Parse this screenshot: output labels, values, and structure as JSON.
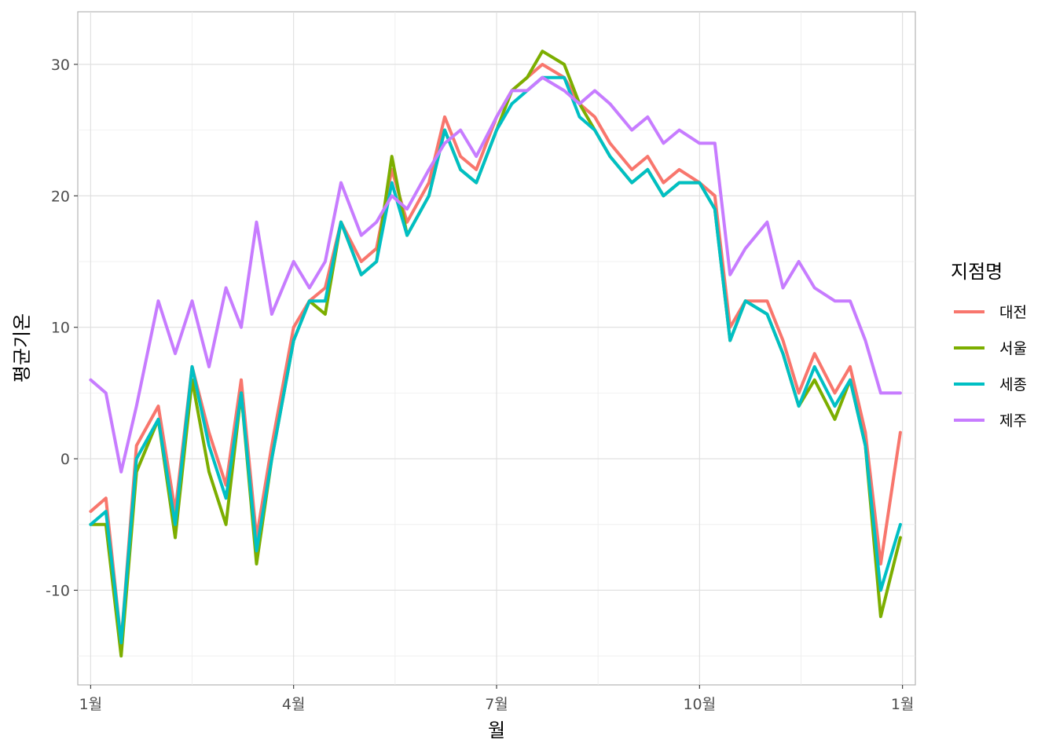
{
  "chart_data": {
    "type": "line",
    "xlabel": "월",
    "ylabel": "평균기온",
    "x_ticks": [
      {
        "month": 1,
        "label": "1월"
      },
      {
        "month": 4,
        "label": "4월"
      },
      {
        "month": 7,
        "label": "7월"
      },
      {
        "month": 10,
        "label": "10월"
      },
      {
        "month": 13,
        "label": "1월"
      }
    ],
    "y_ticks": [
      -10,
      0,
      10,
      20,
      30
    ],
    "xlim_month": [
      0.81,
      13.19
    ],
    "ylim": [
      -17.2,
      34.0
    ],
    "grid": true,
    "legend": {
      "title": "지점명",
      "position": "right"
    },
    "series": [
      {
        "name": "대전",
        "color": "#F8766D",
        "x": [
          "1월 1일",
          "1월 8일",
          "1월 15일",
          "1월 22일",
          "2월 1일",
          "2월 8일",
          "2월 15일",
          "2월 22일",
          "3월 1일",
          "3월 8일",
          "3월 15일",
          "3월 22일",
          "4월 1일",
          "4월 8일",
          "4월 15일",
          "4월 22일",
          "5월 1일",
          "5월 8일",
          "5월 15일",
          "5월 22일",
          "6월 1일",
          "6월 8일",
          "6월 15일",
          "6월 22일",
          "7월 1일",
          "7월 8일",
          "7월 15일",
          "7월 22일",
          "8월 1일",
          "8월 8일",
          "8월 15일",
          "8월 22일",
          "9월 1일",
          "9월 8일",
          "9월 15일",
          "9월 22일",
          "10월 1일",
          "10월 8일",
          "10월 15일",
          "10월 22일",
          "11월 1일",
          "11월 8일",
          "11월 15일",
          "11월 22일",
          "12월 1일",
          "12월 8일",
          "12월 15일",
          "12월 22일",
          "12월 31일"
        ],
        "values": [
          -4,
          -3,
          -14,
          1,
          4,
          -4,
          7,
          2,
          -2,
          6,
          -6,
          1,
          10,
          12,
          13,
          18,
          15,
          16,
          22,
          18,
          21,
          26,
          23,
          22,
          26,
          28,
          29,
          30,
          29,
          27,
          26,
          24,
          22,
          23,
          21,
          22,
          21,
          20,
          10,
          12,
          12,
          9,
          5,
          8,
          5,
          7,
          2,
          -8,
          2
        ]
      },
      {
        "name": "서울",
        "color": "#7CAE00",
        "x": [
          "1월 1일",
          "1월 8일",
          "1월 15일",
          "1월 22일",
          "2월 1일",
          "2월 8일",
          "2월 15일",
          "2월 22일",
          "3월 1일",
          "3월 8일",
          "3월 15일",
          "3월 22일",
          "4월 1일",
          "4월 8일",
          "4월 15일",
          "4월 22일",
          "5월 1일",
          "5월 8일",
          "5월 15일",
          "5월 22일",
          "6월 1일",
          "6월 8일",
          "6월 15일",
          "6월 22일",
          "7월 1일",
          "7월 8일",
          "7월 15일",
          "7월 22일",
          "8월 1일",
          "8월 8일",
          "8월 15일",
          "8월 22일",
          "9월 1일",
          "9월 8일",
          "9월 15일",
          "9월 22일",
          "10월 1일",
          "10월 8일",
          "10월 15일",
          "10월 22일",
          "11월 1일",
          "11월 8일",
          "11월 15일",
          "11월 22일",
          "12월 1일",
          "12월 8일",
          "12월 15일",
          "12월 22일",
          "12월 31일"
        ],
        "values": [
          -5,
          -5,
          -15,
          -1,
          3,
          -6,
          6,
          -1,
          -5,
          5,
          -8,
          0,
          9,
          12,
          11,
          18,
          14,
          15,
          23,
          17,
          20,
          25,
          22,
          21,
          25,
          28,
          29,
          31,
          30,
          27,
          25,
          23,
          21,
          22,
          20,
          21,
          21,
          19,
          9,
          12,
          11,
          8,
          4,
          6,
          3,
          6,
          1,
          -12,
          -6
        ]
      },
      {
        "name": "세종",
        "color": "#00BFC4",
        "x": [
          "1월 1일",
          "1월 8일",
          "1월 15일",
          "1월 22일",
          "2월 1일",
          "2월 8일",
          "2월 15일",
          "2월 22일",
          "3월 1일",
          "3월 8일",
          "3월 15일",
          "3월 22일",
          "4월 1일",
          "4월 8일",
          "4월 15일",
          "4월 22일",
          "5월 1일",
          "5월 8일",
          "5월 15일",
          "5월 22일",
          "6월 1일",
          "6월 8일",
          "6월 15일",
          "6월 22일",
          "7월 1일",
          "7월 8일",
          "7월 15일",
          "7월 22일",
          "8월 1일",
          "8월 8일",
          "8월 15일",
          "8월 22일",
          "9월 1일",
          "9월 8일",
          "9월 15일",
          "9월 22일",
          "10월 1일",
          "10월 8일",
          "10월 15일",
          "10월 22일",
          "11월 1일",
          "11월 8일",
          "11월 15일",
          "11월 22일",
          "12월 1일",
          "12월 8일",
          "12월 15일",
          "12월 22일",
          "12월 31일"
        ],
        "values": [
          -5,
          -4,
          -14,
          0,
          3,
          -5,
          7,
          1,
          -3,
          5,
          -7,
          0,
          9,
          12,
          12,
          18,
          14,
          15,
          21,
          17,
          20,
          25,
          22,
          21,
          25,
          27,
          28,
          29,
          29,
          26,
          25,
          23,
          21,
          22,
          20,
          21,
          21,
          19,
          9,
          12,
          11,
          8,
          4,
          7,
          4,
          6,
          1,
          -10,
          -5
        ]
      },
      {
        "name": "제주",
        "color": "#C77CFF",
        "x": [
          "1월 1일",
          "1월 8일",
          "1월 15일",
          "1월 22일",
          "2월 1일",
          "2월 8일",
          "2월 15일",
          "2월 22일",
          "3월 1일",
          "3월 8일",
          "3월 15일",
          "3월 22일",
          "4월 1일",
          "4월 8일",
          "4월 15일",
          "4월 22일",
          "5월 1일",
          "5월 8일",
          "5월 15일",
          "5월 22일",
          "6월 1일",
          "6월 8일",
          "6월 15일",
          "6월 22일",
          "7월 1일",
          "7월 8일",
          "7월 15일",
          "7월 22일",
          "8월 1일",
          "8월 8일",
          "8월 15일",
          "8월 22일",
          "9월 1일",
          "9월 8일",
          "9월 15일",
          "9월 22일",
          "10월 1일",
          "10월 8일",
          "10월 15일",
          "10월 22일",
          "11월 1일",
          "11월 8일",
          "11월 15일",
          "11월 22일",
          "12월 1일",
          "12월 8일",
          "12월 15일",
          "12월 22일",
          "12월 31일"
        ],
        "values": [
          6,
          5,
          -1,
          4,
          12,
          8,
          12,
          7,
          13,
          10,
          18,
          11,
          15,
          13,
          15,
          21,
          17,
          18,
          20,
          19,
          22,
          24,
          25,
          23,
          26,
          28,
          28,
          29,
          28,
          27,
          28,
          27,
          25,
          26,
          24,
          25,
          24,
          24,
          14,
          16,
          18,
          13,
          15,
          13,
          12,
          12,
          9,
          5,
          5
        ]
      }
    ]
  }
}
